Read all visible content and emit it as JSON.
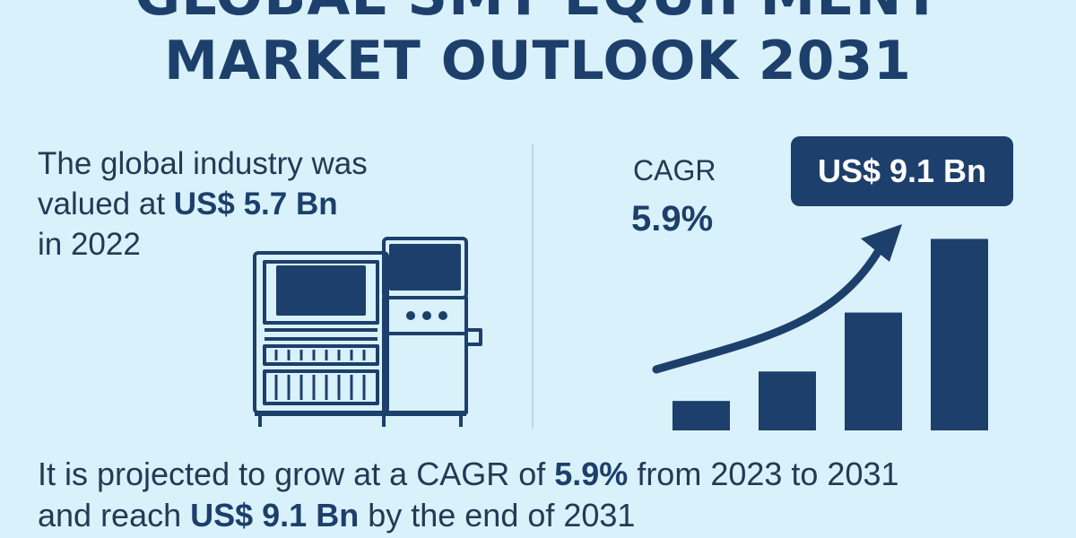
{
  "title": {
    "line1": "GLOBAL SMT EQUIPMENT",
    "line2": "MARKET OUTLOOK 2031"
  },
  "left": {
    "line1": "The global industry was",
    "line2_prefix": "valued at ",
    "line2_value": "US$ 5.7 Bn",
    "line3": "in 2022"
  },
  "cagr": {
    "label": "CAGR",
    "value": "5.9%"
  },
  "badge": {
    "value": "US$ 9.1 Bn"
  },
  "bottom": {
    "part1": "It is projected to grow at a CAGR of ",
    "part2": "5.9%",
    "part3": " from 2023 to 2031",
    "part4": "and reach ",
    "part5": "US$ 9.1 Bn",
    "part6": " by the end of 2031"
  },
  "chart_data": {
    "type": "bar",
    "categories": [
      "",
      "",
      "",
      ""
    ],
    "values": [
      1,
      2,
      4,
      6.5
    ],
    "title": "",
    "xlabel": "",
    "ylabel": "",
    "ylim": [
      0,
      7
    ],
    "trend_arrow": "up-right"
  },
  "colors": {
    "background": "#d9f1fb",
    "primary": "#1d3f6b",
    "divider": "#bad8e6"
  },
  "icons": {
    "machine": "smt-machine-icon",
    "arrow": "growth-arrow-icon"
  }
}
